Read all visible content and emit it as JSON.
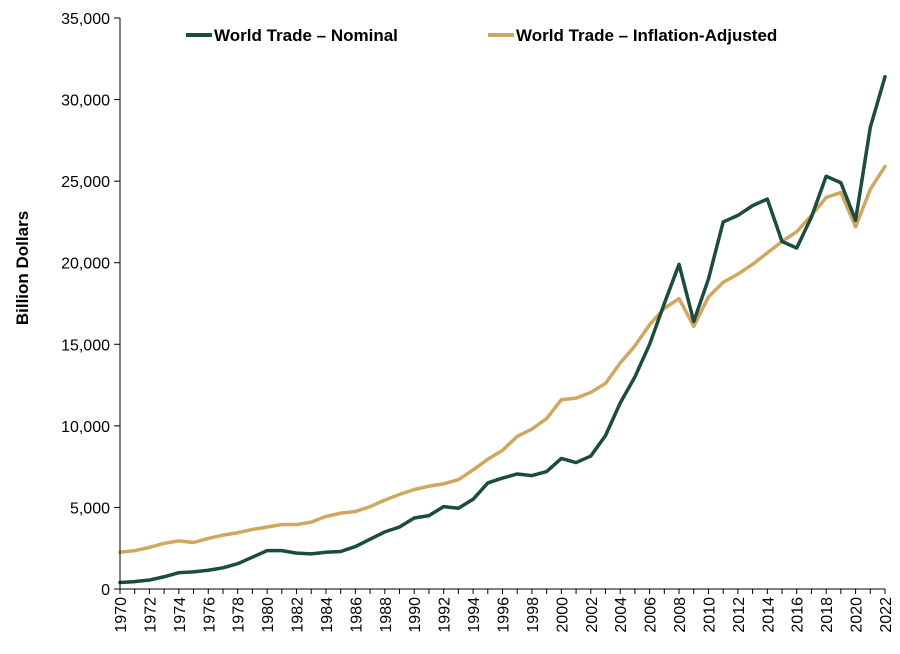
{
  "chart_data": {
    "type": "line",
    "title": "",
    "xlabel": "",
    "ylabel": "Billion Dollars",
    "ylim": [
      0,
      35000
    ],
    "yticks": [
      0,
      5000,
      10000,
      15000,
      20000,
      25000,
      30000,
      35000
    ],
    "ytick_labels": [
      "0",
      "5,000",
      "10,000",
      "15,000",
      "20,000",
      "25,000",
      "30,000",
      "35,000"
    ],
    "xlim": [
      1970,
      2022
    ],
    "xticks": [
      1970,
      1972,
      1974,
      1976,
      1978,
      1980,
      1982,
      1984,
      1986,
      1988,
      1990,
      1992,
      1994,
      1996,
      1998,
      2000,
      2002,
      2004,
      2006,
      2008,
      2010,
      2012,
      2014,
      2016,
      2018,
      2020,
      2022
    ],
    "xtick_labels": [
      "1970",
      "1972",
      "1974",
      "1976",
      "1978",
      "1980",
      "1982",
      "1984",
      "1986",
      "1988",
      "1990",
      "1992",
      "1994",
      "1996",
      "1998",
      "2000",
      "2002",
      "2004",
      "2006",
      "2008",
      "2010",
      "2012",
      "2014",
      "2016",
      "2018",
      "2020",
      "2022"
    ],
    "grid": false,
    "legend_position": "top",
    "x": [
      1970,
      1971,
      1972,
      1973,
      1974,
      1975,
      1976,
      1977,
      1978,
      1979,
      1980,
      1981,
      1982,
      1983,
      1984,
      1985,
      1986,
      1987,
      1988,
      1989,
      1990,
      1991,
      1992,
      1993,
      1994,
      1995,
      1996,
      1997,
      1998,
      1999,
      2000,
      2001,
      2002,
      2003,
      2004,
      2005,
      2006,
      2007,
      2008,
      2009,
      2010,
      2011,
      2012,
      2013,
      2014,
      2015,
      2016,
      2017,
      2018,
      2019,
      2020,
      2021,
      2022
    ],
    "series": [
      {
        "name": "World Trade – Nominal",
        "color": "#1b4d3e",
        "values": [
          400,
          450,
          550,
          750,
          1000,
          1050,
          1150,
          1300,
          1550,
          1950,
          2350,
          2350,
          2200,
          2150,
          2250,
          2300,
          2600,
          3050,
          3500,
          3800,
          4350,
          4500,
          5050,
          4950,
          5500,
          6500,
          6800,
          7050,
          6950,
          7200,
          8000,
          7750,
          8150,
          9400,
          11400,
          13000,
          15000,
          17500,
          19900,
          16400,
          19000,
          22500,
          22900,
          23500,
          23900,
          21300,
          20900,
          22800,
          25300,
          24900,
          22600,
          28300,
          31400
        ]
      },
      {
        "name": "World Trade – Inflation-Adjusted",
        "color": "#d1a760",
        "values": [
          2250,
          2350,
          2550,
          2800,
          2950,
          2850,
          3100,
          3300,
          3450,
          3650,
          3800,
          3950,
          3950,
          4100,
          4450,
          4650,
          4750,
          5050,
          5450,
          5800,
          6100,
          6300,
          6450,
          6700,
          7300,
          7950,
          8500,
          9350,
          9800,
          10450,
          11600,
          11700,
          12050,
          12600,
          13850,
          14900,
          16200,
          17200,
          17800,
          16100,
          17900,
          18800,
          19300,
          19900,
          20600,
          21300,
          21900,
          22900,
          24000,
          24300,
          22200,
          24500,
          25900
        ]
      }
    ]
  }
}
